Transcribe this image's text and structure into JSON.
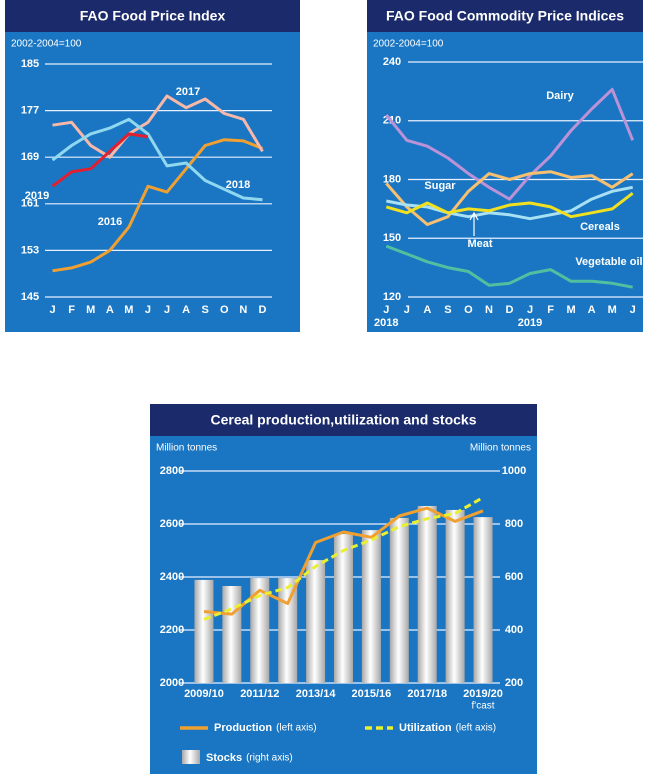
{
  "chart_data": [
    {
      "type": "line",
      "title": "FAO Food Price Index",
      "ylabel": "2002-2004=100",
      "categories": [
        "J",
        "F",
        "M",
        "A",
        "M",
        "J",
        "J",
        "A",
        "S",
        "O",
        "N",
        "D"
      ],
      "ylim": [
        145,
        185
      ],
      "yticks": [
        145,
        153,
        161,
        169,
        177,
        185
      ],
      "grid": true,
      "series": [
        {
          "name": "2016",
          "color": "#f0a030",
          "values": [
            149.5,
            150,
            151,
            153,
            157,
            164,
            163,
            167,
            171,
            172,
            171.8,
            170.5
          ]
        },
        {
          "name": "2017",
          "color": "#f6b8a8",
          "values": [
            174.5,
            175,
            171,
            169,
            173,
            175,
            179.5,
            177.5,
            179,
            176.5,
            175.5,
            170
          ]
        },
        {
          "name": "2018",
          "color": "#8fd8f0",
          "values": [
            168.5,
            171,
            173,
            174,
            175.5,
            173,
            167.5,
            168,
            165,
            163.5,
            162,
            161.7
          ]
        },
        {
          "name": "2019",
          "color": "#e02030",
          "values": [
            164,
            166.5,
            167,
            170,
            173,
            172.5,
            null,
            null,
            null,
            null,
            null,
            null
          ]
        }
      ]
    },
    {
      "type": "line",
      "title": "FAO Food Commodity Price Indices",
      "ylabel": "2002-2004=100",
      "categories": [
        "J",
        "J",
        "A",
        "S",
        "O",
        "N",
        "D",
        "J",
        "F",
        "M",
        "A",
        "M",
        "J"
      ],
      "year_labels": [
        {
          "label": "2018",
          "index": 0
        },
        {
          "label": "2019",
          "index": 7
        }
      ],
      "ylim": [
        120,
        240
      ],
      "yticks": [
        120,
        150,
        180,
        210,
        240
      ],
      "grid": true,
      "series": [
        {
          "name": "Dairy",
          "color": "#bb92d8",
          "values": [
            213,
            200,
            197,
            191,
            183,
            176,
            170,
            182,
            192,
            205,
            216,
            226,
            200
          ]
        },
        {
          "name": "Sugar",
          "color": "#f7c070",
          "values": [
            178,
            166,
            157,
            161,
            174,
            183,
            180,
            183,
            184,
            181,
            182,
            176,
            183
          ]
        },
        {
          "name": "Meat",
          "color": "#a8e0f4",
          "values": [
            169,
            167,
            166,
            163,
            161,
            163,
            162,
            160,
            162,
            164,
            170,
            174,
            176
          ]
        },
        {
          "name": "Cereals",
          "color": "#f0e020",
          "values": [
            166,
            163,
            168,
            163,
            165,
            164,
            167,
            168,
            166,
            161,
            163,
            165,
            173
          ]
        },
        {
          "name": "Vegetable oils",
          "color": "#50c0a0",
          "values": [
            146,
            142,
            138,
            135,
            133,
            126,
            127,
            132,
            134,
            128,
            128,
            127,
            125
          ]
        }
      ]
    },
    {
      "type": "combo",
      "title": "Cereal production,utilization and stocks",
      "ylabel": "Million tonnes",
      "y2label": "Million tonnes",
      "categories": [
        "2009/10",
        null,
        "2011/12",
        null,
        "2013/14",
        null,
        "2015/16",
        null,
        "2017/18",
        null,
        "2019/20"
      ],
      "note": "f'cast",
      "ylim": [
        2000,
        2800
      ],
      "yticks": [
        2000,
        2200,
        2400,
        2600,
        2800
      ],
      "y2lim": [
        200,
        1000
      ],
      "y2ticks": [
        200,
        400,
        600,
        800,
        1000
      ],
      "grid": true,
      "series": [
        {
          "name": "Stocks",
          "legend_note": "(right axis)",
          "kind": "bar",
          "axis": "y2",
          "color": "#a8a8a8",
          "values": [
            589,
            566,
            596,
            596,
            664,
            762,
            777,
            823,
            868,
            853,
            826
          ]
        },
        {
          "name": "Production",
          "legend_note": "(left axis)",
          "kind": "line",
          "color": "#f0a030",
          "values": [
            2270,
            2260,
            2350,
            2300,
            2530,
            2570,
            2550,
            2630,
            2660,
            2610,
            2650
          ]
        },
        {
          "name": "Utilization",
          "legend_note": "(left axis)",
          "kind": "dashed",
          "color": "#e8f030",
          "values": [
            2240,
            2280,
            2330,
            2360,
            2440,
            2500,
            2540,
            2590,
            2620,
            2640,
            2700
          ]
        }
      ]
    }
  ]
}
